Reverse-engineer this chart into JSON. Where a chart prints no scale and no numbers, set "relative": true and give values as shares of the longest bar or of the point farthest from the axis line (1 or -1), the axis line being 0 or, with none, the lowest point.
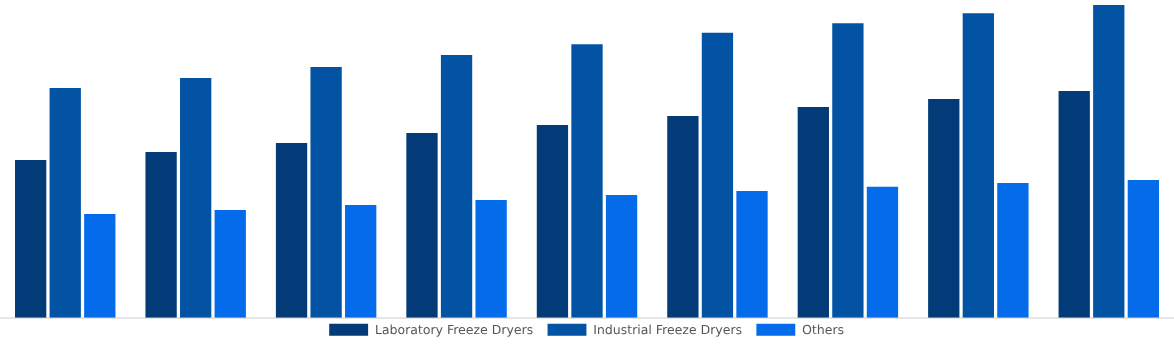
{
  "chart_data": {
    "type": "bar",
    "relative": true,
    "categories": [
      null,
      null,
      null,
      null,
      null,
      null,
      null,
      null,
      null
    ],
    "legend": "bottom",
    "grid": false,
    "series": [
      {
        "name": "Laboratory Freeze Dryers",
        "color": "#033b78",
        "values": [
          0.505,
          0.53,
          0.559,
          0.591,
          0.617,
          0.645,
          0.674,
          0.7,
          0.725
        ]
      },
      {
        "name": "Industrial Freeze Dryers",
        "color": "#0353a4",
        "values": [
          0.735,
          0.767,
          0.802,
          0.84,
          0.875,
          0.911,
          0.942,
          0.974,
          1
        ]
      },
      {
        "name": "Others",
        "color": "#046beb",
        "values": [
          0.332,
          0.345,
          0.361,
          0.377,
          0.393,
          0.406,
          0.419,
          0.431,
          0.441
        ]
      }
    ]
  }
}
